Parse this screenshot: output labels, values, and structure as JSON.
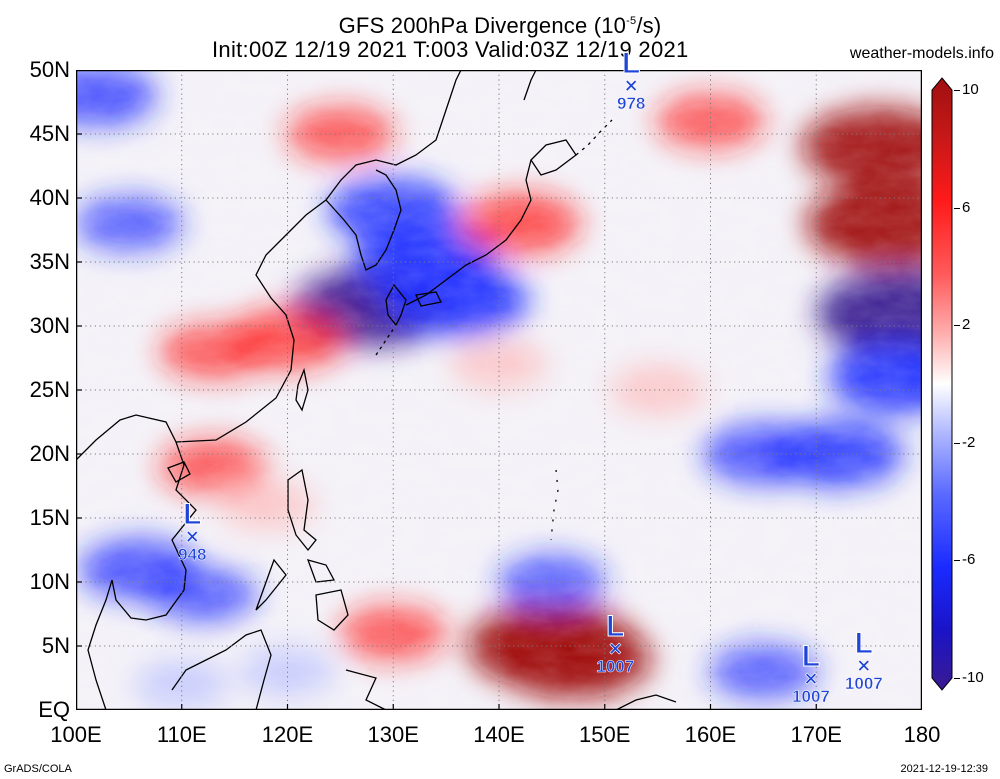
{
  "title": {
    "prefix": "GFS 200hPa Divergence (10",
    "exponent": "-5",
    "suffix": "/s)"
  },
  "subtitle": "Init:00Z 12/19 2021 T:003 Valid:03Z 12/19 2021",
  "source_label": "weather-models.info",
  "footer": {
    "credit": "GrADS/COLA",
    "timestamp": "2021-12-19-12:39"
  },
  "map": {
    "lat_range": [
      0,
      50
    ],
    "lon_range": [
      100,
      180
    ],
    "lat_ticks": [
      {
        "value": 50,
        "label": "50N"
      },
      {
        "value": 45,
        "label": "45N"
      },
      {
        "value": 40,
        "label": "40N"
      },
      {
        "value": 35,
        "label": "35N"
      },
      {
        "value": 30,
        "label": "30N"
      },
      {
        "value": 25,
        "label": "25N"
      },
      {
        "value": 20,
        "label": "20N"
      },
      {
        "value": 15,
        "label": "15N"
      },
      {
        "value": 10,
        "label": "10N"
      },
      {
        "value": 5,
        "label": "5N"
      },
      {
        "value": 0,
        "label": "EQ"
      }
    ],
    "lon_ticks": [
      {
        "value": 100,
        "label": "100E"
      },
      {
        "value": 110,
        "label": "110E"
      },
      {
        "value": 120,
        "label": "120E"
      },
      {
        "value": 130,
        "label": "130E"
      },
      {
        "value": 140,
        "label": "140E"
      },
      {
        "value": 150,
        "label": "150E"
      },
      {
        "value": 160,
        "label": "160E"
      },
      {
        "value": 170,
        "label": "170E"
      },
      {
        "value": 180,
        "label": "180"
      }
    ],
    "grid": "dotted"
  },
  "colorbar": {
    "range": [
      -10,
      10
    ],
    "ticks": [
      {
        "value": 10,
        "label": "10"
      },
      {
        "value": 6,
        "label": "6"
      },
      {
        "value": 2,
        "label": "2"
      },
      {
        "value": -2,
        "label": "-2"
      },
      {
        "value": -6,
        "label": "-6"
      },
      {
        "value": -10,
        "label": "-10"
      }
    ],
    "colors": {
      "max": "#a01010",
      "high": "#ff1a1a",
      "mid_pos": "#ffb0b0",
      "zero": "#ffffff",
      "mid_neg": "#b0b8ff",
      "low": "#1a2aff",
      "min": "#3a1a90"
    }
  },
  "lows": [
    {
      "name": "low-978",
      "letter": "L",
      "pressure": "978",
      "lon": 152.5,
      "lat": 48.5
    },
    {
      "name": "low-948",
      "letter": "L",
      "pressure": "948",
      "lon": 111.0,
      "lat": 13.3
    },
    {
      "name": "low-1007-a",
      "letter": "L",
      "pressure": "1007",
      "lon": 151.0,
      "lat": 4.5
    },
    {
      "name": "low-1007-b",
      "letter": "L",
      "pressure": "1007",
      "lon": 169.5,
      "lat": 2.2
    },
    {
      "name": "low-1007-c",
      "letter": "L",
      "pressure": "1007",
      "lon": 174.5,
      "lat": 3.2
    }
  ],
  "field_features": [
    {
      "lon": 128,
      "lat": 31.5,
      "value": -8
    },
    {
      "lon": 133,
      "lat": 35.0,
      "value": -7
    },
    {
      "lon": 130,
      "lat": 39.0,
      "value": -6
    },
    {
      "lon": 136,
      "lat": 32.0,
      "value": -7
    },
    {
      "lon": 145,
      "lat": 5.0,
      "value": 9
    },
    {
      "lon": 147,
      "lat": 4.0,
      "value": 8
    },
    {
      "lon": 177,
      "lat": 38.0,
      "value": 9
    },
    {
      "lon": 176,
      "lat": 44.0,
      "value": 8
    },
    {
      "lon": 178,
      "lat": 31.0,
      "value": -9
    },
    {
      "lon": 178,
      "lat": 26.0,
      "value": -7
    },
    {
      "lon": 113,
      "lat": 28.0,
      "value": 4
    },
    {
      "lon": 120,
      "lat": 29.0,
      "value": 5
    },
    {
      "lon": 140,
      "lat": 27.0,
      "value": 3
    },
    {
      "lon": 155,
      "lat": 25.0,
      "value": 3
    },
    {
      "lon": 102,
      "lat": 48.0,
      "value": -5
    },
    {
      "lon": 105,
      "lat": 38.0,
      "value": -4
    },
    {
      "lon": 106,
      "lat": 11.0,
      "value": -5
    },
    {
      "lon": 112,
      "lat": 9.0,
      "value": -4
    },
    {
      "lon": 145,
      "lat": 10.0,
      "value": -4
    },
    {
      "lon": 165,
      "lat": 20.0,
      "value": -5
    },
    {
      "lon": 172,
      "lat": 20.0,
      "value": -6
    },
    {
      "lon": 160,
      "lat": 46.0,
      "value": 4
    },
    {
      "lon": 142,
      "lat": 38.0,
      "value": 5
    },
    {
      "lon": 113,
      "lat": 19.0,
      "value": 4
    },
    {
      "lon": 118,
      "lat": 16.0,
      "value": 3
    },
    {
      "lon": 125,
      "lat": 45.0,
      "value": 4
    },
    {
      "lon": 110,
      "lat": 2.0,
      "value": -3
    },
    {
      "lon": 165,
      "lat": 3.0,
      "value": -4
    },
    {
      "lon": 130,
      "lat": 6.0,
      "value": 4
    },
    {
      "lon": 120,
      "lat": 3.0,
      "value": -3
    }
  ]
}
